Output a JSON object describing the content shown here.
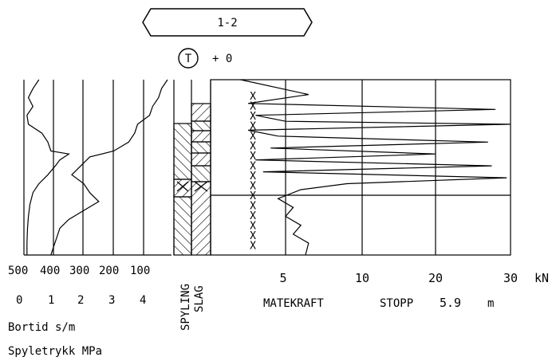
{
  "header": {
    "borehole_id": "1-2",
    "terrain_symbol": "T",
    "terrain_level": "+ 0"
  },
  "left_panel": {
    "bortid_ticks": [
      "500",
      "400",
      "300",
      "200",
      "100"
    ],
    "spyletrykk_ticks": [
      "0",
      "1",
      "2",
      "3",
      "4"
    ],
    "bortid_label": "Bortid s/m",
    "spyletrykk_label": "Spyletrykk MPa"
  },
  "middle_panel": {
    "spyling_label": "SPYLING",
    "slag_label": "SLAG"
  },
  "right_panel": {
    "x_ticks": [
      "5",
      "10",
      "20",
      "30"
    ],
    "unit": "kN",
    "matekraft_label": "MATEKRAFT",
    "stopp_label": "STOPP",
    "stopp_value": "5.9",
    "stopp_unit": "m"
  },
  "chart_data": [
    {
      "type": "line",
      "name_printed": "",
      "description_axis": "Bortid s/m (reversed 500 → 100) and Spyletrykk MPa (0 → 4)",
      "x_ticks_bortid": [
        500,
        400,
        300,
        200,
        100
      ],
      "x_ticks_spyletrykk": [
        0,
        1,
        2,
        3,
        4
      ],
      "y_depth_m": [
        0,
        5.9
      ],
      "series": [
        {
          "values_bortid": [
            [
              0.0,
              450
            ],
            [
              0.3,
              470
            ],
            [
              0.6,
              485
            ],
            [
              0.9,
              470
            ],
            [
              1.2,
              490
            ],
            [
              1.5,
              485
            ],
            [
              1.8,
              440
            ],
            [
              2.1,
              420
            ],
            [
              2.4,
              410
            ],
            [
              2.5,
              350
            ],
            [
              2.7,
              380
            ],
            [
              2.9,
              395
            ],
            [
              3.2,
              420
            ],
            [
              3.5,
              450
            ],
            [
              3.8,
              470
            ],
            [
              4.2,
              480
            ],
            [
              4.6,
              485
            ],
            [
              5.0,
              488
            ],
            [
              5.5,
              490
            ],
            [
              5.9,
              490
            ]
          ],
          "values_spyletrykk": [
            [
              0.0,
              4.8
            ],
            [
              0.3,
              4.6
            ],
            [
              0.6,
              4.5
            ],
            [
              0.9,
              4.3
            ],
            [
              1.2,
              4.2
            ],
            [
              1.5,
              3.8
            ],
            [
              1.8,
              3.7
            ],
            [
              2.1,
              3.5
            ],
            [
              2.4,
              3.0
            ],
            [
              2.6,
              2.2
            ],
            [
              2.9,
              1.9
            ],
            [
              3.2,
              1.6
            ],
            [
              3.5,
              2.0
            ],
            [
              3.8,
              2.2
            ],
            [
              4.1,
              2.5
            ],
            [
              4.4,
              2.0
            ],
            [
              4.7,
              1.5
            ],
            [
              5.0,
              1.2
            ],
            [
              5.3,
              1.1
            ],
            [
              5.6,
              1.0
            ],
            [
              5.9,
              0.9
            ]
          ]
        }
      ]
    },
    {
      "type": "line",
      "x_unit": "kN",
      "x_ticks": [
        5,
        10,
        20,
        30
      ],
      "y_depth_m": [
        0,
        5.9
      ],
      "stop_depth_m": 5.9,
      "series": [
        {
          "values_matekraft": [
            [
              0.0,
              2.0
            ],
            [
              0.5,
              6.5
            ],
            [
              0.8,
              2.5
            ],
            [
              1.0,
              28.0
            ],
            [
              1.2,
              3.0
            ],
            [
              1.4,
              5.0
            ],
            [
              1.5,
              30.0
            ],
            [
              1.7,
              2.5
            ],
            [
              1.9,
              4.5
            ],
            [
              2.1,
              27.0
            ],
            [
              2.3,
              4.0
            ],
            [
              2.5,
              20.0
            ],
            [
              2.7,
              3.0
            ],
            [
              2.9,
              27.5
            ],
            [
              3.1,
              3.5
            ],
            [
              3.3,
              29.5
            ],
            [
              3.5,
              9.0
            ],
            [
              3.7,
              6.0
            ],
            [
              4.0,
              4.5
            ],
            [
              4.3,
              5.5
            ],
            [
              4.6,
              5.0
            ],
            [
              4.9,
              6.0
            ],
            [
              5.2,
              5.5
            ],
            [
              5.5,
              6.5
            ],
            [
              5.9,
              6.3
            ]
          ]
        }
      ]
    }
  ]
}
